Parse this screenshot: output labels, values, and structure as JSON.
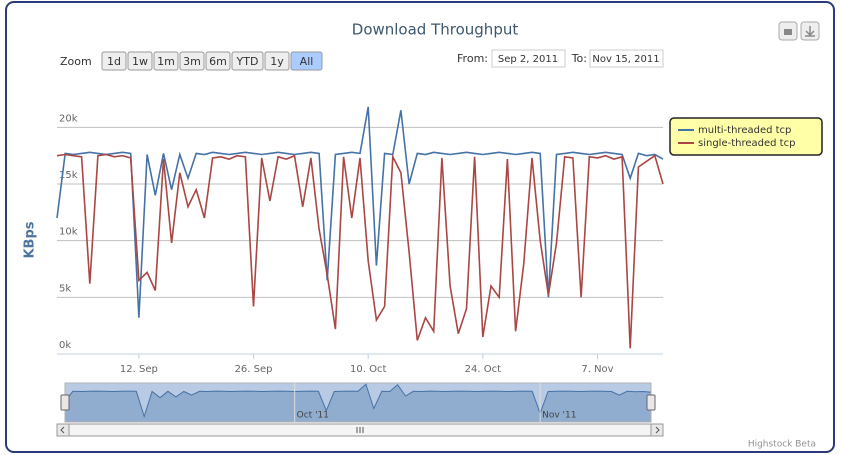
{
  "chart_data": {
    "type": "line",
    "title": "Download Throughput",
    "y_axis_label": "KBps",
    "range_selector": {
      "label": "Zoom",
      "buttons": [
        "1d",
        "1w",
        "1m",
        "3m",
        "6m",
        "YTD",
        "1y",
        "All"
      ],
      "selected": 7,
      "from_label": "From:",
      "from": "Sep 2, 2011",
      "to_label": "To:",
      "to": "Nov 15, 2011"
    },
    "x": [
      "2011-09-02",
      "2011-09-03",
      "2011-09-04",
      "2011-09-05",
      "2011-09-06",
      "2011-09-07",
      "2011-09-08",
      "2011-09-09",
      "2011-09-10",
      "2011-09-11",
      "2011-09-12",
      "2011-09-13",
      "2011-09-14",
      "2011-09-15",
      "2011-09-16",
      "2011-09-17",
      "2011-09-18",
      "2011-09-19",
      "2011-09-20",
      "2011-09-21",
      "2011-09-22",
      "2011-09-23",
      "2011-09-24",
      "2011-09-25",
      "2011-09-26",
      "2011-09-27",
      "2011-09-28",
      "2011-09-29",
      "2011-09-30",
      "2011-10-01",
      "2011-10-02",
      "2011-10-03",
      "2011-10-04",
      "2011-10-05",
      "2011-10-06",
      "2011-10-07",
      "2011-10-08",
      "2011-10-09",
      "2011-10-10",
      "2011-10-11",
      "2011-10-12",
      "2011-10-13",
      "2011-10-14",
      "2011-10-15",
      "2011-10-16",
      "2011-10-17",
      "2011-10-18",
      "2011-10-19",
      "2011-10-20",
      "2011-10-21",
      "2011-10-22",
      "2011-10-23",
      "2011-10-24",
      "2011-10-25",
      "2011-10-26",
      "2011-10-27",
      "2011-10-28",
      "2011-10-29",
      "2011-10-30",
      "2011-10-31",
      "2011-11-01",
      "2011-11-02",
      "2011-11-03",
      "2011-11-04",
      "2011-11-05",
      "2011-11-06",
      "2011-11-07",
      "2011-11-08",
      "2011-11-09",
      "2011-11-10",
      "2011-11-11",
      "2011-11-12",
      "2011-11-13",
      "2011-11-14",
      "2011-11-15"
    ],
    "series": [
      {
        "name": "multi-threaded tcp",
        "color": "#4572a7",
        "values": [
          12000,
          17700,
          17600,
          17700,
          17800,
          17700,
          17600,
          17700,
          17800,
          17700,
          3200,
          17600,
          14000,
          17700,
          14500,
          17600,
          15500,
          17700,
          17600,
          17800,
          17700,
          17600,
          17700,
          17800,
          17700,
          17600,
          17700,
          17800,
          17700,
          17600,
          17700,
          17800,
          17700,
          6500,
          17600,
          17700,
          17800,
          17700,
          21800,
          7800,
          17700,
          17600,
          21500,
          15000,
          17700,
          17600,
          17800,
          17700,
          17600,
          17700,
          17800,
          17700,
          17600,
          17700,
          17800,
          17700,
          17600,
          17700,
          17800,
          17700,
          5000,
          17600,
          17700,
          17800,
          17700,
          17600,
          17700,
          17800,
          17700,
          17600,
          15500,
          17700,
          17500,
          17600,
          17200
        ]
      },
      {
        "name": "single-threaded tcp",
        "color": "#aa4643",
        "values": [
          17500,
          17600,
          17500,
          17400,
          6200,
          17500,
          17600,
          17400,
          17500,
          17300,
          6500,
          7200,
          5600,
          17200,
          9800,
          16000,
          13000,
          14500,
          12000,
          17300,
          17400,
          17200,
          17500,
          17400,
          4200,
          17300,
          13500,
          17400,
          17200,
          17500,
          13000,
          17300,
          11000,
          7000,
          2200,
          17400,
          12000,
          17300,
          8200,
          3000,
          4200,
          17400,
          16000,
          9000,
          1200,
          3200,
          2000,
          17300,
          6000,
          1800,
          4000,
          17400,
          1500,
          6000,
          5000,
          17200,
          2000,
          8000,
          17300,
          10000,
          5200,
          9800,
          17400,
          17300,
          5000,
          17400,
          17300,
          17500,
          17200,
          17400,
          500,
          16500,
          17000,
          17500,
          15000
        ]
      }
    ],
    "xlim": [
      "2011-09-02",
      "2011-11-15"
    ],
    "xticks": [
      {
        "value": "2011-09-12",
        "label": "12. Sep"
      },
      {
        "value": "2011-09-26",
        "label": "26. Sep"
      },
      {
        "value": "2011-10-10",
        "label": "10. Oct"
      },
      {
        "value": "2011-10-24",
        "label": "24. Oct"
      },
      {
        "value": "2011-11-07",
        "label": "7. Nov"
      }
    ],
    "ylim": [
      0,
      22500
    ],
    "yticks": [
      {
        "value": 0,
        "label": "0k"
      },
      {
        "value": 5000,
        "label": "5k"
      },
      {
        "value": 10000,
        "label": "10k"
      },
      {
        "value": 15000,
        "label": "15k"
      },
      {
        "value": 20000,
        "label": "20k"
      }
    ],
    "grid": true,
    "legend": "right",
    "navigator": {
      "ticks": [
        {
          "value": "2011-10-01",
          "label": "Oct '11"
        },
        {
          "value": "2011-11-01",
          "label": "Nov '11"
        }
      ]
    },
    "credits": "Highstock Beta"
  }
}
